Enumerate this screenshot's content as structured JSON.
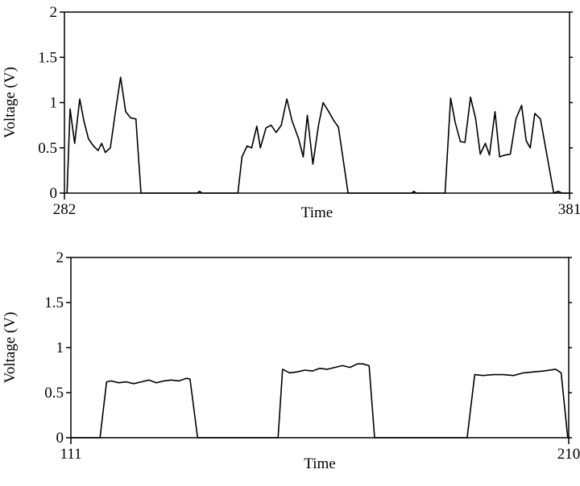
{
  "chart_data": [
    {
      "type": "line",
      "xlabel": "Time",
      "ylabel": "Voltage (V)",
      "xlim": [
        282,
        381
      ],
      "xticks": [
        282,
        381
      ],
      "ylim": [
        0,
        2
      ],
      "yticks": [
        0,
        0.5,
        1,
        1.5,
        2
      ],
      "color": "#000000",
      "x": [
        282.5,
        283.1,
        284,
        285,
        285.8,
        286.7,
        287.7,
        288.6,
        289.3,
        290,
        291,
        292,
        293,
        294,
        295,
        296,
        297,
        308,
        308.5,
        309,
        316,
        316.8,
        317.8,
        318.7,
        319.7,
        320.4,
        321.5,
        322.5,
        323.5,
        324.5,
        325.6,
        326.6,
        327.9,
        328.8,
        329.6,
        330.7,
        331.8,
        332.7,
        333.8,
        334.8,
        335.7,
        337.6,
        350,
        350.5,
        351,
        356.6,
        357.7,
        358.6,
        359.6,
        360.5,
        361.6,
        362.6,
        363.5,
        364.5,
        365.3,
        366.4,
        367.3,
        368.3,
        369.4,
        370.5,
        371.6,
        372.5,
        373.3,
        374.2,
        375.3,
        377.9,
        378.8,
        379.5,
        381
      ],
      "y": [
        0,
        0.93,
        0.55,
        1.04,
        0.8,
        0.6,
        0.52,
        0.47,
        0.55,
        0.45,
        0.5,
        0.9,
        1.28,
        0.9,
        0.83,
        0.82,
        0,
        0,
        0.02,
        0,
        0,
        0.4,
        0.52,
        0.5,
        0.74,
        0.5,
        0.72,
        0.75,
        0.67,
        0.75,
        1.04,
        0.8,
        0.6,
        0.4,
        0.86,
        0.32,
        0.75,
        1.0,
        0.9,
        0.8,
        0.73,
        0,
        0,
        0.02,
        0,
        0,
        1.05,
        0.78,
        0.57,
        0.56,
        1.06,
        0.82,
        0.43,
        0.55,
        0.42,
        0.9,
        0.4,
        0.42,
        0.43,
        0.82,
        0.97,
        0.58,
        0.5,
        0.88,
        0.82,
        0,
        0.02,
        0,
        0
      ]
    },
    {
      "type": "line",
      "xlabel": "Time",
      "ylabel": "Voltage (V)",
      "xlim": [
        111,
        210
      ],
      "xticks": [
        111,
        210
      ],
      "ylim": [
        0,
        2
      ],
      "yticks": [
        0,
        0.5,
        1,
        1.5,
        2
      ],
      "color": "#000000",
      "x": [
        111,
        116.8,
        118.1,
        119,
        120.5,
        122,
        123.5,
        125,
        126.5,
        128,
        129.5,
        131,
        132.5,
        134,
        134.7,
        136.2,
        152.2,
        153.1,
        154.5,
        156,
        157.5,
        159,
        160.5,
        162,
        163.5,
        165,
        166.5,
        168,
        169,
        170.3,
        171.4,
        189.8,
        191.3,
        193,
        195,
        197,
        199,
        201,
        203,
        205,
        207.4,
        208.5,
        209.8
      ],
      "y": [
        0,
        0,
        0.62,
        0.63,
        0.61,
        0.62,
        0.6,
        0.62,
        0.64,
        0.61,
        0.63,
        0.64,
        0.63,
        0.66,
        0.65,
        0,
        0,
        0.76,
        0.72,
        0.73,
        0.75,
        0.74,
        0.77,
        0.76,
        0.78,
        0.8,
        0.78,
        0.82,
        0.82,
        0.8,
        0,
        0,
        0.7,
        0.69,
        0.7,
        0.7,
        0.69,
        0.72,
        0.73,
        0.74,
        0.76,
        0.72,
        0
      ]
    }
  ]
}
